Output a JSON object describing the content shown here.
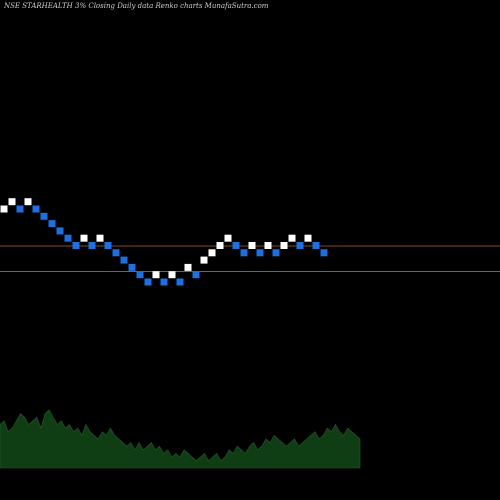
{
  "header": {
    "title": "NSE STARHEALTH 3% Closing Daily data Renko charts MunafaSutra.com"
  },
  "colors": {
    "background": "#000000",
    "up_brick": "#ffffff",
    "down_brick": "#1e6fe0",
    "reference_line": "#b5651d",
    "volume_area": "#0f3d14",
    "volume_outline": "#2a5a2a"
  },
  "chart_data": [
    {
      "type": "renko",
      "title": "NSE STARHEALTH 3% Closing Daily data Renko charts MunafaSutra.com",
      "brick_size": "3%",
      "level_index": [
        5,
        6,
        5,
        6,
        5,
        4,
        3,
        2,
        1,
        0,
        1,
        0,
        1,
        0,
        -1,
        -2,
        -3,
        -4,
        -5,
        -4,
        -5,
        -4,
        -5,
        -3,
        -4,
        -2,
        -1,
        0,
        1,
        0,
        -1,
        0,
        -1,
        0,
        -1,
        0,
        1,
        0,
        1,
        0,
        -1
      ],
      "direction": [
        "up",
        "up",
        "down",
        "up",
        "down",
        "down",
        "down",
        "down",
        "down",
        "down",
        "up",
        "down",
        "up",
        "down",
        "down",
        "down",
        "down",
        "down",
        "down",
        "up",
        "down",
        "up",
        "down",
        "up",
        "down",
        "up",
        "up",
        "up",
        "up",
        "down",
        "down",
        "up",
        "down",
        "up",
        "down",
        "up",
        "up",
        "down",
        "up",
        "down",
        "down"
      ],
      "reference_lines": [
        0,
        -3.5
      ],
      "volume": [
        12,
        13,
        10,
        11,
        13,
        15,
        14,
        12,
        13,
        14,
        11,
        15,
        16,
        14,
        12,
        13,
        11,
        12,
        10,
        11,
        9,
        12,
        10,
        9,
        8,
        10,
        9,
        11,
        9,
        8,
        7,
        6,
        7,
        5,
        7,
        5,
        6,
        7,
        5,
        6,
        4,
        5,
        3,
        4,
        3,
        5,
        4,
        3,
        2,
        3,
        4,
        2,
        3,
        4,
        2,
        3,
        5,
        4,
        6,
        5,
        4,
        6,
        7,
        5,
        6,
        8,
        7,
        9,
        8,
        7,
        6,
        7,
        8,
        6,
        7,
        8,
        9,
        10,
        8,
        9,
        11,
        10,
        12,
        10,
        9,
        11,
        10,
        9,
        8
      ]
    }
  ]
}
